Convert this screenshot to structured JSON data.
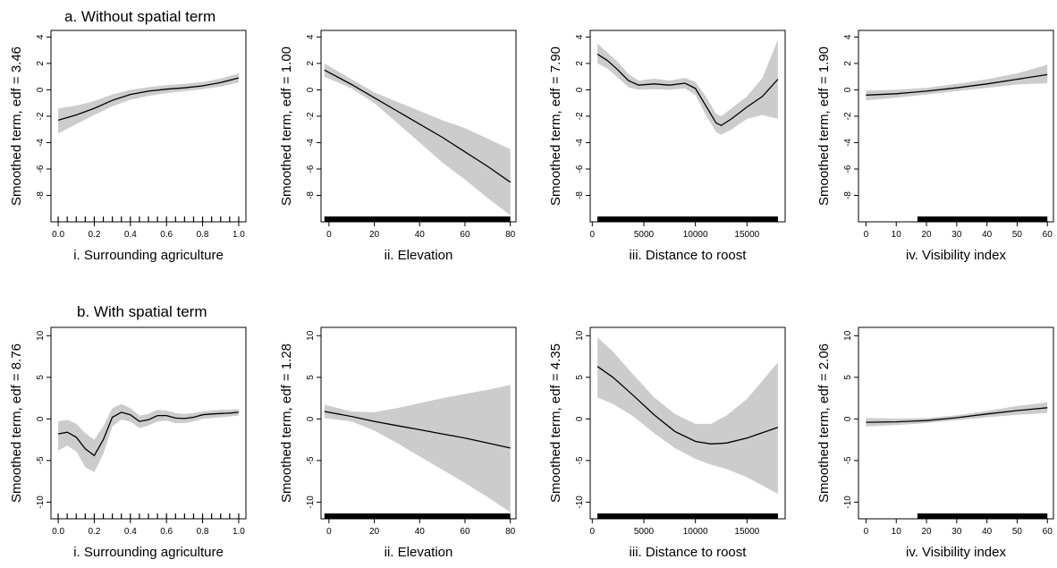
{
  "figure": {
    "colors": {
      "band": "#cccccc",
      "line": "#000000",
      "frame": "#000000",
      "background": "#ffffff"
    },
    "rows": [
      {
        "title": "a. Without spatial term",
        "ylim": [
          -10,
          4.5
        ],
        "yticks": [
          4,
          2,
          0,
          -2,
          -4,
          -6,
          -8
        ]
      },
      {
        "title": "b. With spatial term",
        "ylim": [
          -12,
          11
        ],
        "yticks": [
          10,
          5,
          0,
          -5,
          -10
        ]
      }
    ]
  },
  "chart_data": [
    {
      "type": "line",
      "row": 0,
      "col": 0,
      "xlabel": "i. Surrounding agriculture",
      "ylabel": "Smoothed term, edf = 3.46",
      "xlim": [
        -0.04,
        1.04
      ],
      "ylim": [
        -10,
        4.5
      ],
      "xticks": [
        0.0,
        0.2,
        0.4,
        0.6,
        0.8,
        1.0
      ],
      "xtick_labels": [
        "0.0",
        "0.2",
        "0.4",
        "0.6",
        "0.8",
        "1.0"
      ],
      "yticks": [
        4,
        2,
        0,
        -2,
        -4,
        -6,
        -8
      ],
      "rug": {
        "style": "ticks",
        "values": [
          0.0,
          0.05,
          0.1,
          0.15,
          0.2,
          0.25,
          0.3,
          0.35,
          0.4,
          0.45,
          0.5,
          0.55,
          0.6,
          0.65,
          0.7,
          0.75,
          0.8,
          0.85,
          0.9,
          0.95,
          1.0
        ]
      },
      "series": [
        {
          "x": [
            0.0,
            0.1,
            0.2,
            0.3,
            0.4,
            0.5,
            0.6,
            0.7,
            0.8,
            0.9,
            1.0
          ],
          "y": [
            -2.3,
            -1.9,
            -1.4,
            -0.8,
            -0.35,
            -0.1,
            0.05,
            0.15,
            0.3,
            0.55,
            0.9
          ],
          "lower": [
            -3.3,
            -2.6,
            -1.9,
            -1.25,
            -0.75,
            -0.45,
            -0.25,
            -0.1,
            0.05,
            0.25,
            0.55
          ],
          "upper": [
            -1.4,
            -1.2,
            -0.85,
            -0.35,
            0.0,
            0.2,
            0.35,
            0.45,
            0.6,
            0.85,
            1.25
          ]
        }
      ]
    },
    {
      "type": "line",
      "row": 0,
      "col": 1,
      "xlabel": "ii. Elevation",
      "ylabel": "Smoothed term, edf = 1.00",
      "xlim": [
        -3.5,
        82.5
      ],
      "ylim": [
        -10,
        4.5
      ],
      "xticks": [
        0,
        20,
        40,
        60,
        80
      ],
      "xtick_labels": [
        "0",
        "20",
        "40",
        "60",
        "80"
      ],
      "yticks": [
        4,
        2,
        0,
        -2,
        -4,
        -6,
        -8
      ],
      "rug": {
        "style": "band",
        "from": -2,
        "to": 80
      },
      "series": [
        {
          "x": [
            -2,
            10,
            20,
            30,
            40,
            50,
            60,
            70,
            80
          ],
          "y": [
            1.5,
            0.4,
            -0.6,
            -1.6,
            -2.6,
            -3.6,
            -4.7,
            -5.8,
            -7.0
          ],
          "lower": [
            1.0,
            0.1,
            -1.0,
            -2.5,
            -4.0,
            -5.5,
            -6.8,
            -8.2,
            -9.5
          ],
          "upper": [
            2.0,
            0.8,
            -0.2,
            -0.9,
            -1.6,
            -2.3,
            -2.9,
            -3.7,
            -4.5
          ]
        }
      ]
    },
    {
      "type": "line",
      "row": 0,
      "col": 2,
      "xlabel": "iii. Distance to roost",
      "ylabel": "Smoothed term, edf = 7.90",
      "xlim": [
        -200,
        18700
      ],
      "ylim": [
        -10,
        4.5
      ],
      "xticks": [
        0,
        5000,
        10000,
        15000
      ],
      "xtick_labels": [
        "0",
        "5000",
        "10000",
        "15000"
      ],
      "yticks": [
        4,
        2,
        0,
        -2,
        -4,
        -6,
        -8
      ],
      "rug": {
        "style": "band",
        "from": 500,
        "to": 18000
      },
      "series": [
        {
          "x": [
            500,
            1500,
            2500,
            3500,
            4500,
            6000,
            7500,
            9000,
            10000,
            11000,
            12000,
            12500,
            13500,
            15000,
            16500,
            18000
          ],
          "y": [
            2.7,
            2.2,
            1.5,
            0.7,
            0.35,
            0.45,
            0.35,
            0.5,
            0.1,
            -1.2,
            -2.5,
            -2.7,
            -2.2,
            -1.3,
            -0.5,
            0.8
          ],
          "lower": [
            2.0,
            1.6,
            0.9,
            0.2,
            0.0,
            0.05,
            0.0,
            0.1,
            -0.4,
            -1.9,
            -3.2,
            -3.4,
            -3.0,
            -2.2,
            -1.9,
            -2.2
          ],
          "upper": [
            3.5,
            2.8,
            2.1,
            1.2,
            0.7,
            0.85,
            0.7,
            0.9,
            0.6,
            -0.5,
            -1.8,
            -2.0,
            -1.4,
            -0.5,
            0.9,
            3.8
          ]
        }
      ]
    },
    {
      "type": "line",
      "row": 0,
      "col": 3,
      "xlabel": "iv. Visibility index",
      "ylabel": "Smoothed term, edf = 1.90",
      "xlim": [
        -2.5,
        62
      ],
      "ylim": [
        -10,
        4.5
      ],
      "xticks": [
        0,
        10,
        20,
        30,
        40,
        50,
        60
      ],
      "xtick_labels": [
        "0",
        "10",
        "20",
        "30",
        "40",
        "50",
        "60"
      ],
      "yticks": [
        4,
        2,
        0,
        -2,
        -4,
        -6,
        -8
      ],
      "rug": {
        "style": "band",
        "from": 17,
        "to": 60
      },
      "series": [
        {
          "x": [
            0,
            10,
            20,
            30,
            40,
            50,
            60
          ],
          "y": [
            -0.4,
            -0.3,
            -0.1,
            0.15,
            0.45,
            0.8,
            1.15
          ],
          "lower": [
            -0.8,
            -0.6,
            -0.35,
            -0.1,
            0.15,
            0.4,
            0.5
          ],
          "upper": [
            -0.05,
            0.0,
            0.15,
            0.45,
            0.8,
            1.25,
            1.9
          ]
        }
      ]
    },
    {
      "type": "line",
      "row": 1,
      "col": 0,
      "xlabel": "i. Surrounding agriculture",
      "ylabel": "Smoothed term, edf = 8.76",
      "xlim": [
        -0.04,
        1.04
      ],
      "ylim": [
        -12,
        11
      ],
      "xticks": [
        0.0,
        0.2,
        0.4,
        0.6,
        0.8,
        1.0
      ],
      "xtick_labels": [
        "0.0",
        "0.2",
        "0.4",
        "0.6",
        "0.8",
        "1.0"
      ],
      "yticks": [
        10,
        5,
        0,
        -5,
        -10
      ],
      "rug": {
        "style": "ticks",
        "values": [
          0.0,
          0.05,
          0.1,
          0.15,
          0.2,
          0.25,
          0.3,
          0.35,
          0.4,
          0.45,
          0.5,
          0.55,
          0.6,
          0.65,
          0.7,
          0.75,
          0.8,
          0.85,
          0.9,
          0.95,
          1.0
        ]
      },
      "series": [
        {
          "x": [
            0.0,
            0.05,
            0.1,
            0.15,
            0.2,
            0.25,
            0.3,
            0.35,
            0.4,
            0.45,
            0.5,
            0.55,
            0.6,
            0.65,
            0.7,
            0.75,
            0.8,
            0.85,
            0.9,
            0.95,
            1.0
          ],
          "y": [
            -1.8,
            -1.6,
            -2.2,
            -3.6,
            -4.4,
            -2.5,
            0.2,
            0.8,
            0.5,
            -0.3,
            -0.1,
            0.4,
            0.4,
            0.1,
            0.05,
            0.2,
            0.5,
            0.6,
            0.65,
            0.7,
            0.8
          ],
          "lower": [
            -3.8,
            -3.2,
            -3.9,
            -5.8,
            -6.4,
            -4.2,
            -0.9,
            -0.1,
            -0.3,
            -1.1,
            -0.8,
            -0.3,
            -0.2,
            -0.5,
            -0.5,
            -0.3,
            0.0,
            0.1,
            0.2,
            0.3,
            0.4
          ],
          "upper": [
            -0.3,
            -0.1,
            -0.6,
            -1.7,
            -2.5,
            -0.9,
            1.3,
            1.8,
            1.3,
            0.4,
            0.6,
            1.1,
            1.0,
            0.7,
            0.6,
            0.7,
            0.9,
            1.0,
            1.1,
            1.1,
            1.2
          ]
        }
      ]
    },
    {
      "type": "line",
      "row": 1,
      "col": 1,
      "xlabel": "ii. Elevation",
      "ylabel": "Smoothed term, edf = 1.28",
      "xlim": [
        -3.5,
        82.5
      ],
      "ylim": [
        -12,
        11
      ],
      "xticks": [
        0,
        20,
        40,
        60,
        80
      ],
      "xtick_labels": [
        "0",
        "20",
        "40",
        "60",
        "80"
      ],
      "yticks": [
        10,
        5,
        0,
        -5,
        -10
      ],
      "rug": {
        "style": "band",
        "from": -2,
        "to": 80
      },
      "series": [
        {
          "x": [
            -2,
            10,
            20,
            30,
            40,
            50,
            60,
            70,
            80
          ],
          "y": [
            0.9,
            0.3,
            -0.3,
            -0.8,
            -1.3,
            -1.8,
            -2.3,
            -2.9,
            -3.5
          ],
          "lower": [
            0.1,
            -0.3,
            -1.4,
            -2.9,
            -4.5,
            -6.1,
            -7.7,
            -9.4,
            -11.2
          ],
          "upper": [
            1.7,
            0.9,
            0.8,
            1.3,
            1.9,
            2.5,
            3.0,
            3.5,
            4.1
          ]
        }
      ]
    },
    {
      "type": "line",
      "row": 1,
      "col": 2,
      "xlabel": "iii. Distance to roost",
      "ylabel": "Smoothed term, edf = 4.35",
      "xlim": [
        -200,
        18700
      ],
      "ylim": [
        -12,
        11
      ],
      "xticks": [
        0,
        5000,
        10000,
        15000
      ],
      "xtick_labels": [
        "0",
        "5000",
        "10000",
        "15000"
      ],
      "yticks": [
        10,
        5,
        0,
        -5,
        -10
      ],
      "rug": {
        "style": "band",
        "from": 500,
        "to": 18000
      },
      "series": [
        {
          "x": [
            500,
            2000,
            4000,
            6000,
            8000,
            10000,
            11500,
            13000,
            15000,
            18000
          ],
          "y": [
            6.3,
            5.0,
            2.8,
            0.5,
            -1.5,
            -2.7,
            -3.0,
            -2.9,
            -2.3,
            -1.0
          ],
          "lower": [
            2.6,
            1.8,
            0.3,
            -1.7,
            -3.5,
            -4.8,
            -5.5,
            -6.0,
            -7.0,
            -9.0
          ],
          "upper": [
            9.8,
            8.1,
            5.3,
            2.6,
            0.6,
            -0.6,
            -0.6,
            0.4,
            2.4,
            6.8
          ]
        }
      ]
    },
    {
      "type": "line",
      "row": 1,
      "col": 3,
      "xlabel": "iv. Visibility index",
      "ylabel": "Smoothed term, edf = 2.06",
      "xlim": [
        -2.5,
        62
      ],
      "ylim": [
        -12,
        11
      ],
      "xticks": [
        0,
        10,
        20,
        30,
        40,
        50,
        60
      ],
      "xtick_labels": [
        "0",
        "10",
        "20",
        "30",
        "40",
        "50",
        "60"
      ],
      "yticks": [
        10,
        5,
        0,
        -5,
        -10
      ],
      "rug": {
        "style": "band",
        "from": 17,
        "to": 60
      },
      "series": [
        {
          "x": [
            0,
            10,
            20,
            30,
            40,
            50,
            60
          ],
          "y": [
            -0.4,
            -0.35,
            -0.2,
            0.15,
            0.6,
            1.0,
            1.35
          ],
          "lower": [
            -0.9,
            -0.75,
            -0.5,
            -0.15,
            0.2,
            0.5,
            0.7
          ],
          "upper": [
            0.1,
            0.05,
            0.1,
            0.45,
            0.95,
            1.55,
            2.0
          ]
        }
      ]
    }
  ]
}
